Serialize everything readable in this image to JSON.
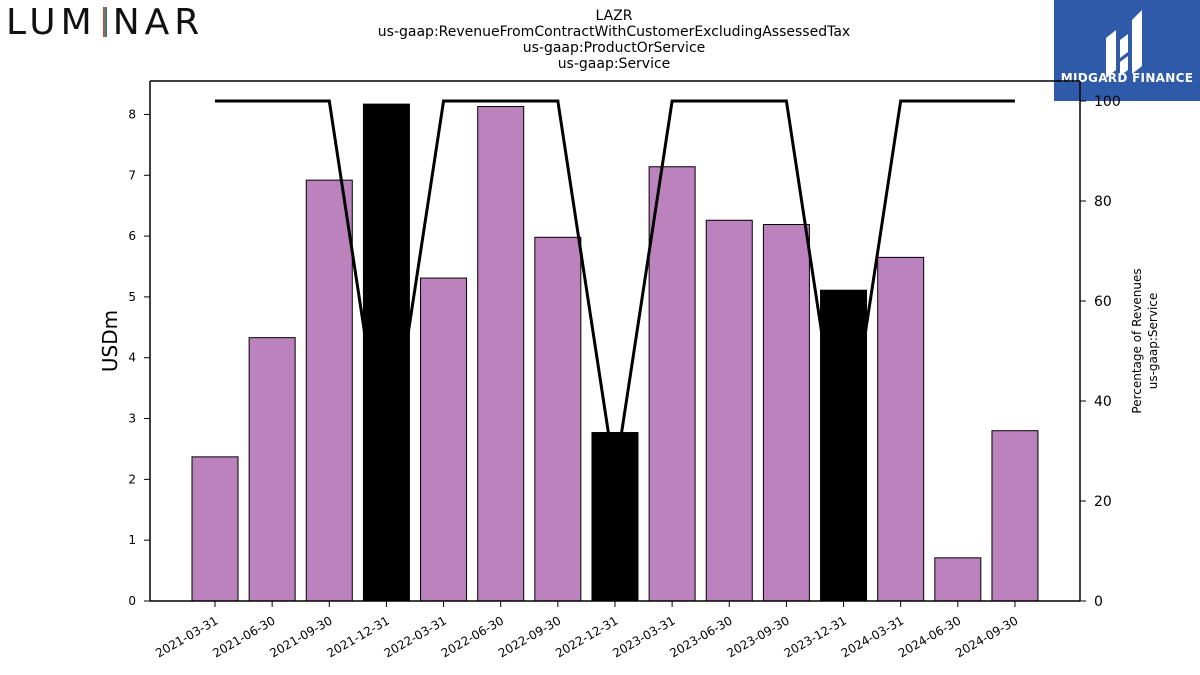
{
  "header": {
    "brand_left": "LUMINAR",
    "brand_right": "MIDGARD FINANCE",
    "brand_right_icon": "midgard-logo-icon"
  },
  "colors": {
    "bar_normal": "#bc82bd",
    "bar_highlight": "#000000",
    "line": "#000000",
    "badge_bg": "#2e5aa9",
    "luminar_accent_red": "#e23b3b",
    "luminar_accent_green": "#3aa845",
    "luminar_accent_blue": "#3b5fc0"
  },
  "chart_data": {
    "type": "bar",
    "title_lines": [
      "LAZR",
      "us-gaap:RevenueFromContractWithCustomerExcludingAssessedTax",
      "us-gaap:ProductOrService",
      "us-gaap:Service"
    ],
    "ylabel": "USDm",
    "y2label_lines": [
      "Percentage of Revenues",
      "us-gaap:Service"
    ],
    "ylim": [
      0,
      8.55
    ],
    "y2lim": [
      0,
      104
    ],
    "yticks": [
      0,
      1,
      2,
      3,
      4,
      5,
      6,
      7,
      8
    ],
    "y2ticks": [
      0,
      20,
      40,
      60,
      80,
      100
    ],
    "categories": [
      "2021-03-31",
      "2021-06-30",
      "2021-09-30",
      "2021-12-31",
      "2022-03-31",
      "2022-06-30",
      "2022-09-30",
      "2022-12-31",
      "2023-03-31",
      "2023-06-30",
      "2023-09-30",
      "2023-12-31",
      "2024-03-31",
      "2024-06-30",
      "2024-09-30"
    ],
    "values": [
      2.37,
      4.33,
      6.92,
      8.17,
      5.31,
      8.13,
      5.98,
      2.77,
      7.14,
      6.26,
      6.19,
      5.11,
      5.65,
      0.71,
      2.8
    ],
    "highlight": [
      false,
      false,
      false,
      true,
      false,
      false,
      false,
      true,
      false,
      false,
      false,
      true,
      false,
      false,
      false
    ],
    "percent_line": [
      100,
      100,
      100,
      25,
      100,
      100,
      100,
      25,
      100,
      100,
      100,
      25,
      100,
      100,
      100
    ]
  }
}
